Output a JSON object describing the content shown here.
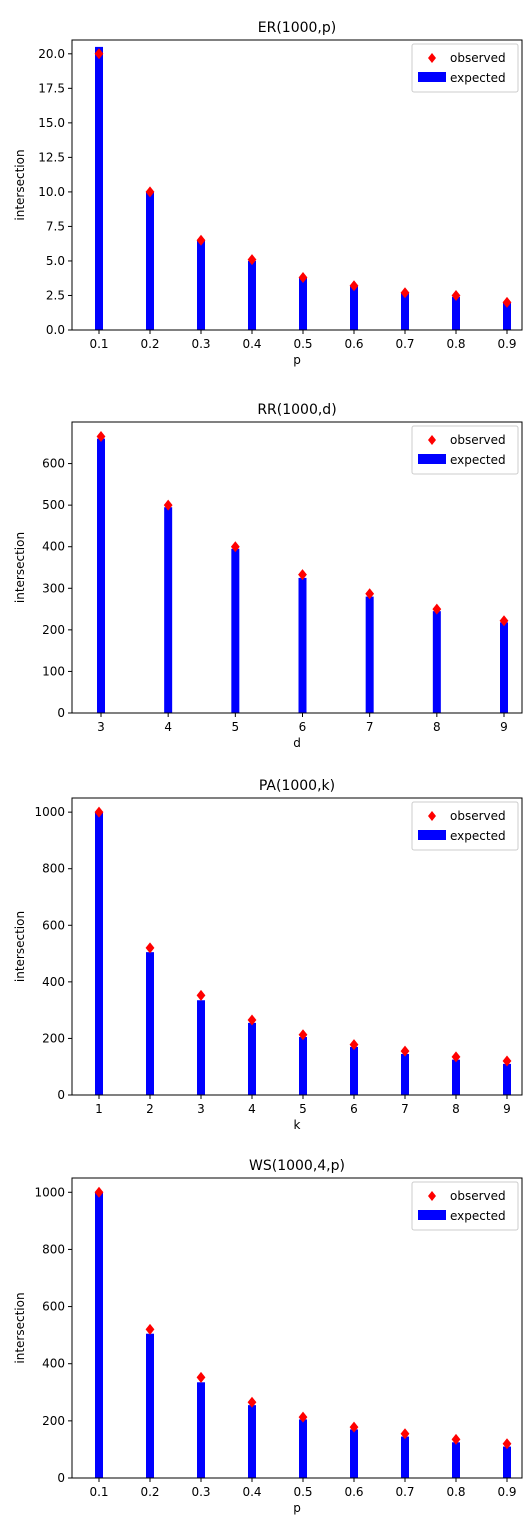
{
  "colors": {
    "observed": "#ff0000",
    "expected": "#0000ff",
    "axis": "#000000"
  },
  "chart_data": [
    {
      "type": "bar",
      "title": "ER(1000,p)",
      "xlabel": "p",
      "ylabel": "intersection",
      "categories": [
        "0.1",
        "0.2",
        "0.3",
        "0.4",
        "0.5",
        "0.6",
        "0.7",
        "0.8",
        "0.9"
      ],
      "ylim": [
        0,
        21
      ],
      "yticks": [
        "0.0",
        "2.5",
        "5.0",
        "7.5",
        "10.0",
        "12.5",
        "15.0",
        "17.5",
        "20.0"
      ],
      "ytick_values": [
        0,
        2.5,
        5,
        7.5,
        10,
        12.5,
        15,
        17.5,
        20
      ],
      "series": [
        {
          "name": "expected",
          "kind": "bar",
          "values": [
            20.5,
            10.0,
            6.5,
            5.0,
            3.8,
            3.2,
            2.7,
            2.4,
            2.0
          ]
        },
        {
          "name": "observed",
          "kind": "marker",
          "values": [
            20.0,
            10.0,
            6.5,
            5.1,
            3.8,
            3.2,
            2.7,
            2.5,
            2.0
          ]
        }
      ],
      "legend": "top-right",
      "grid": false
    },
    {
      "type": "bar",
      "title": "RR(1000,d)",
      "xlabel": "d",
      "ylabel": "intersection",
      "categories": [
        "3",
        "4",
        "5",
        "6",
        "7",
        "8",
        "9"
      ],
      "ylim": [
        0,
        700
      ],
      "yticks": [
        "0",
        "100",
        "200",
        "300",
        "400",
        "500",
        "600"
      ],
      "ytick_values": [
        0,
        100,
        200,
        300,
        400,
        500,
        600
      ],
      "series": [
        {
          "name": "expected",
          "kind": "bar",
          "values": [
            660,
            495,
            395,
            325,
            280,
            245,
            218
          ]
        },
        {
          "name": "observed",
          "kind": "marker",
          "values": [
            665,
            500,
            400,
            333,
            287,
            250,
            222
          ]
        }
      ],
      "legend": "top-right",
      "grid": false
    },
    {
      "type": "bar",
      "title": "PA(1000,k)",
      "xlabel": "k",
      "ylabel": "intersection",
      "categories": [
        "1",
        "2",
        "3",
        "4",
        "5",
        "6",
        "7",
        "8",
        "9"
      ],
      "ylim": [
        0,
        1050
      ],
      "yticks": [
        "0",
        "200",
        "400",
        "600",
        "800",
        "1000"
      ],
      "ytick_values": [
        0,
        200,
        400,
        600,
        800,
        1000
      ],
      "series": [
        {
          "name": "expected",
          "kind": "bar",
          "values": [
            998,
            505,
            335,
            255,
            205,
            170,
            145,
            125,
            110
          ]
        },
        {
          "name": "observed",
          "kind": "marker",
          "values": [
            1000,
            520,
            352,
            265,
            213,
            178,
            155,
            135,
            120
          ]
        }
      ],
      "legend": "top-right",
      "grid": false
    },
    {
      "type": "bar",
      "title": "WS(1000,4,p)",
      "xlabel": "p",
      "ylabel": "intersection",
      "categories": [
        "0.1",
        "0.2",
        "0.3",
        "0.4",
        "0.5",
        "0.6",
        "0.7",
        "0.8",
        "0.9"
      ],
      "ylim": [
        0,
        1050
      ],
      "yticks": [
        "0",
        "200",
        "400",
        "600",
        "800",
        "1000"
      ],
      "ytick_values": [
        0,
        200,
        400,
        600,
        800,
        1000
      ],
      "series": [
        {
          "name": "expected",
          "kind": "bar",
          "values": [
            998,
            505,
            335,
            255,
            205,
            170,
            145,
            125,
            110
          ]
        },
        {
          "name": "observed",
          "kind": "marker",
          "values": [
            1000,
            520,
            352,
            265,
            213,
            178,
            155,
            135,
            120
          ]
        }
      ],
      "legend": "top-right",
      "grid": false
    }
  ]
}
